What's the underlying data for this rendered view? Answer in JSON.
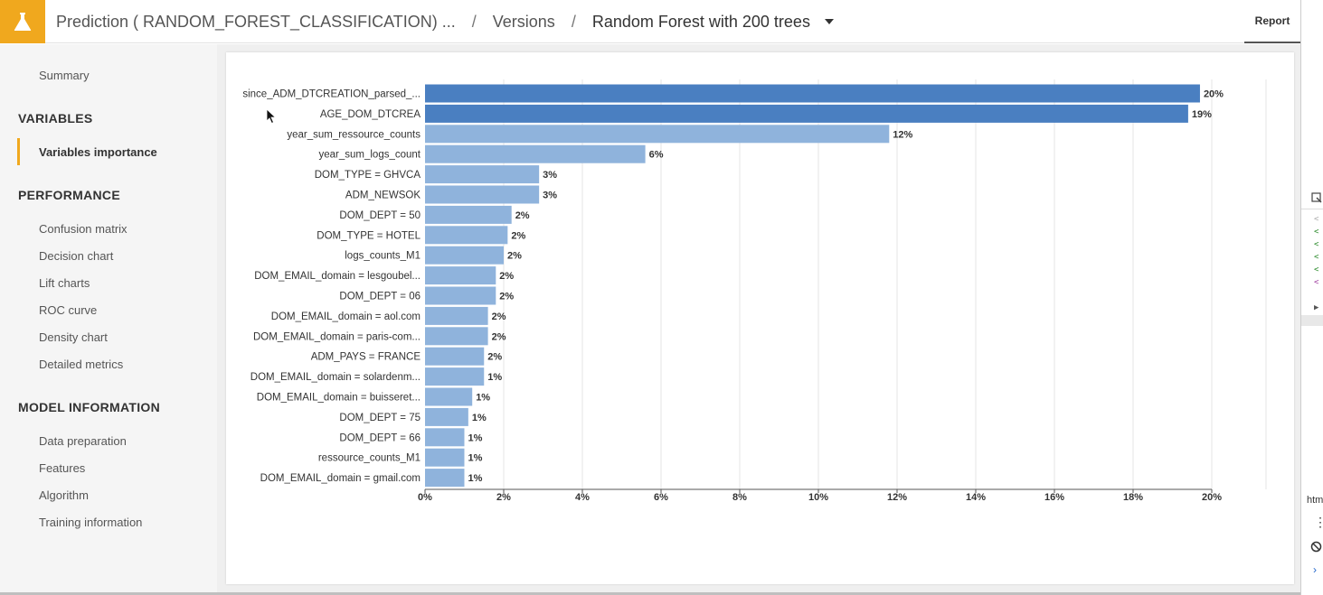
{
  "header": {
    "breadcrumbs": [
      "Prediction ( RANDOM_FOREST_CLASSIFICATION) ...",
      "Versions"
    ],
    "current": "Random Forest with 200 trees",
    "separator": "/",
    "report_tab": "Report"
  },
  "sidebar": {
    "summary": "Summary",
    "sections": [
      {
        "title": "VARIABLES",
        "items": [
          "Variables importance"
        ]
      },
      {
        "title": "PERFORMANCE",
        "items": [
          "Confusion matrix",
          "Decision chart",
          "Lift charts",
          "ROC curve",
          "Density chart",
          "Detailed metrics"
        ]
      },
      {
        "title": "MODEL INFORMATION",
        "items": [
          "Data preparation",
          "Features",
          "Algorithm",
          "Training information"
        ]
      }
    ],
    "active_item": "Variables importance"
  },
  "devtools": {
    "bottom_label": "htm"
  },
  "colors": {
    "accent": "#f0a81e",
    "bar_dark": "#4a7fc1",
    "bar_light": "#8fb3dc"
  },
  "chart_data": {
    "type": "bar",
    "orientation": "horizontal",
    "categories": [
      "since_ADM_DTCREATION_parsed_...",
      "AGE_DOM_DTCREA",
      "year_sum_ressource_counts",
      "year_sum_logs_count",
      "DOM_TYPE = GHVCA",
      "ADM_NEWSOK",
      "DOM_DEPT = 50",
      "DOM_TYPE = HOTEL",
      "logs_counts_M1",
      "DOM_EMAIL_domain = lesgoubel...",
      "DOM_DEPT = 06",
      "DOM_EMAIL_domain = aol.com",
      "DOM_EMAIL_domain = paris-com...",
      "ADM_PAYS = FRANCE",
      "DOM_EMAIL_domain = solardenm...",
      "DOM_EMAIL_domain = buisseret...",
      "DOM_DEPT = 75",
      "DOM_DEPT = 66",
      "ressource_counts_M1",
      "DOM_EMAIL_domain = gmail.com"
    ],
    "values": [
      19.7,
      19.4,
      11.8,
      5.6,
      2.9,
      2.9,
      2.2,
      2.1,
      2.0,
      1.8,
      1.8,
      1.6,
      1.6,
      1.5,
      1.5,
      1.2,
      1.1,
      1.0,
      1.0,
      1.0
    ],
    "data_labels": [
      "20%",
      "19%",
      "12%",
      "6%",
      "3%",
      "3%",
      "2%",
      "2%",
      "2%",
      "2%",
      "2%",
      "2%",
      "2%",
      "2%",
      "1%",
      "1%",
      "1%",
      "1%",
      "1%",
      "1%"
    ],
    "x_ticks": [
      "0%",
      "2%",
      "4%",
      "6%",
      "8%",
      "10%",
      "12%",
      "14%",
      "16%",
      "18%",
      "20%"
    ],
    "xlim": [
      0,
      20
    ],
    "grid": true
  }
}
